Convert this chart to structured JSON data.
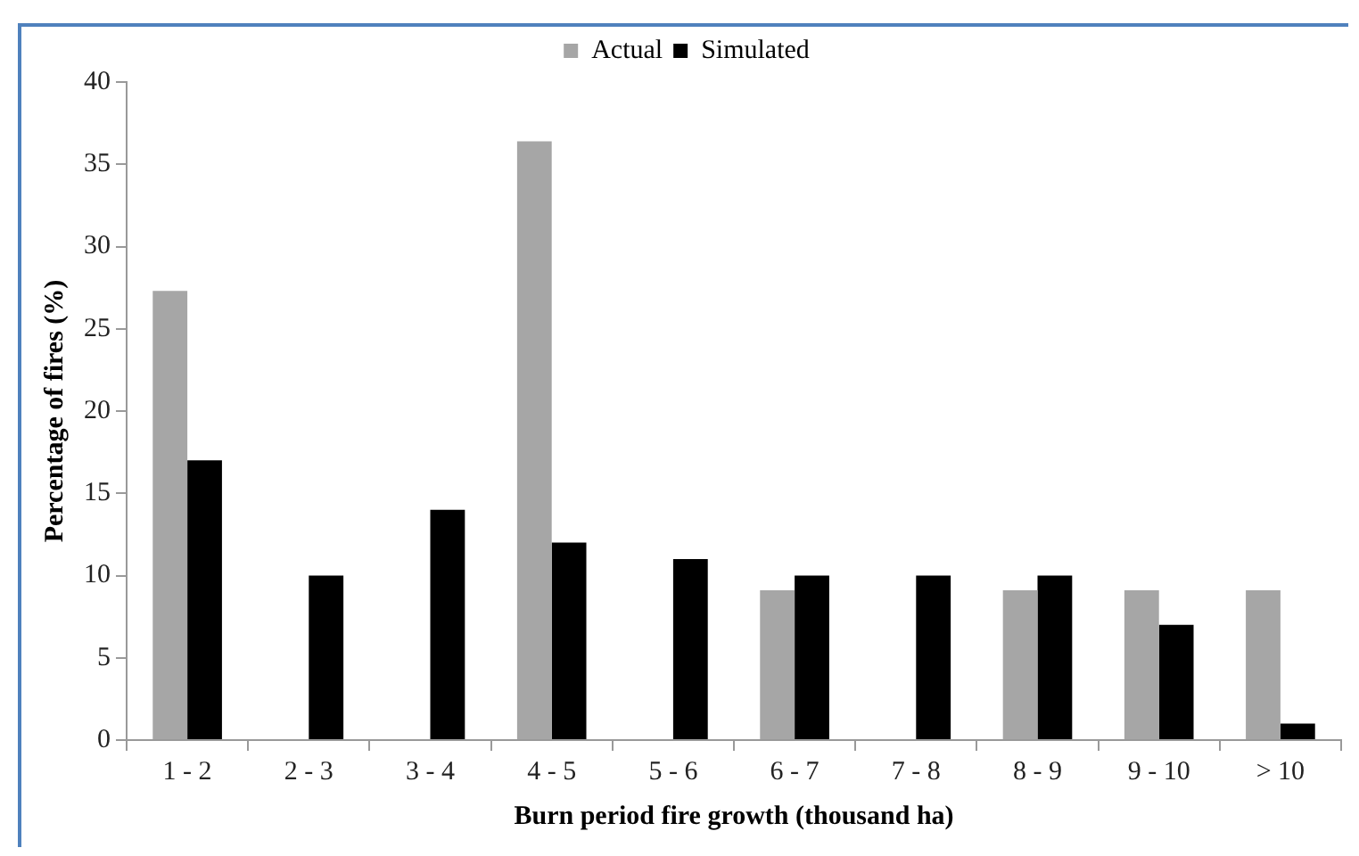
{
  "chart_data": {
    "type": "bar",
    "xlabel": "Burn period fire growth (thousand ha)",
    "ylabel": "Percentage of fires (%)",
    "categories": [
      "1 - 2",
      "2 - 3",
      "3 - 4",
      "4 - 5",
      "5 - 6",
      "6 - 7",
      "7 - 8",
      "8 - 9",
      "9 - 10",
      "> 10"
    ],
    "series": [
      {
        "name": "Actual",
        "color": "#a6a6a6",
        "values": [
          27.3,
          0,
          0,
          36.4,
          0,
          9.1,
          0,
          9.1,
          9.1,
          9.1
        ]
      },
      {
        "name": "Simulated",
        "color": "#000000",
        "values": [
          17,
          10,
          14,
          12,
          11,
          10,
          10,
          10,
          7,
          1
        ]
      }
    ],
    "ylim": [
      0,
      40
    ],
    "yticks": [
      0,
      5,
      10,
      15,
      20,
      25,
      30,
      35,
      40
    ],
    "grid": false,
    "legend": "top"
  }
}
